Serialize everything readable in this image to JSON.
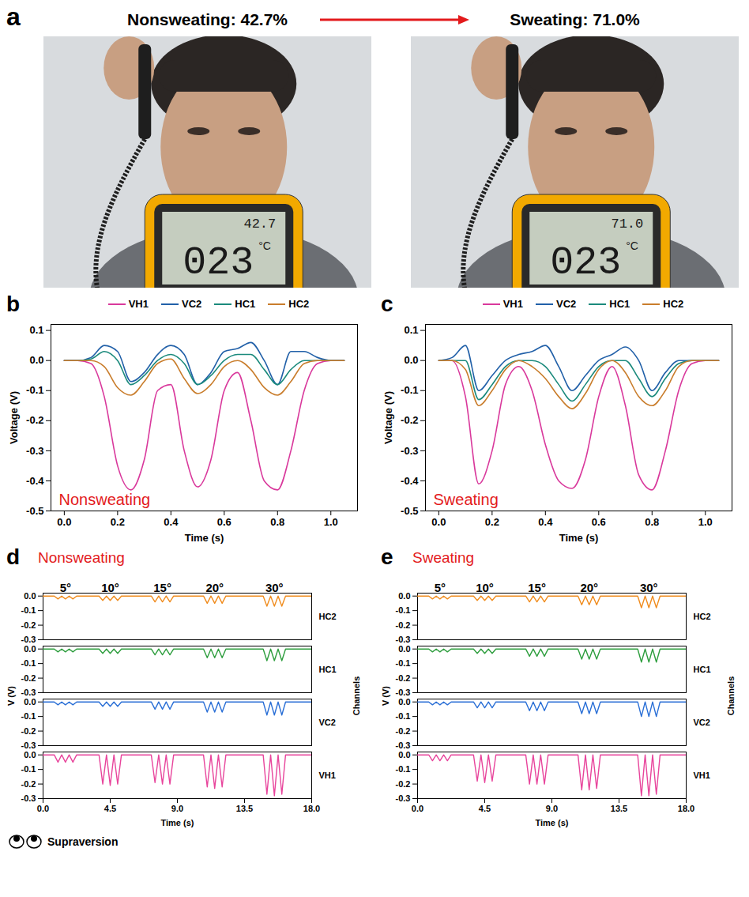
{
  "figure": {
    "panel_a": {
      "panel": "a",
      "left": {
        "title": "Nonsweating: 42.7%",
        "display": {
          "reading": "42.7",
          "temperature": "023",
          "unit": "°C"
        }
      },
      "right": {
        "title": "Sweating: 71.0%",
        "display": {
          "reading": "71.0",
          "temperature": "023",
          "unit": "°C"
        }
      }
    }
  },
  "chart_data": [
    {
      "panel": "b",
      "type": "line",
      "condition": "Nonsweating",
      "xlabel": "Time (s)",
      "ylabel": "Voltage (V)",
      "legend": "top",
      "grid": false,
      "x": [
        0,
        0.05,
        0.1,
        0.15,
        0.2,
        0.25,
        0.3,
        0.35,
        0.4,
        0.45,
        0.5,
        0.55,
        0.6,
        0.65,
        0.7,
        0.75,
        0.8,
        0.85,
        0.9,
        0.95,
        1.0,
        1.05
      ],
      "xlim": [
        -0.05,
        1.1
      ],
      "xticks": [
        {
          "value": 0,
          "label": "0.0"
        },
        0.2,
        0.4,
        0.6,
        0.8,
        {
          "value": 1,
          "label": "1.0"
        }
      ],
      "ylim": [
        -0.5,
        0.12
      ],
      "yticks": [
        0.1,
        {
          "value": 0,
          "label": "0.0"
        },
        -0.1,
        -0.2,
        -0.3,
        -0.4,
        -0.5
      ],
      "series": [
        {
          "name": "VH1",
          "color": "#d9399c",
          "values": [
            0,
            0,
            -0.01,
            -0.12,
            -0.35,
            -0.43,
            -0.33,
            -0.1,
            -0.08,
            -0.3,
            -0.42,
            -0.33,
            -0.1,
            -0.04,
            -0.2,
            -0.4,
            -0.43,
            -0.3,
            -0.1,
            -0.01,
            0,
            0
          ]
        },
        {
          "name": "VC2",
          "color": "#2160a8",
          "values": [
            0,
            0,
            0.01,
            0.05,
            0.03,
            -0.07,
            -0.04,
            0.02,
            0.05,
            0.02,
            -0.08,
            -0.04,
            0.03,
            0.04,
            0.06,
            0,
            -0.08,
            0.03,
            0.03,
            0.01,
            0,
            0
          ]
        },
        {
          "name": "HC1",
          "color": "#1b8a7c",
          "values": [
            0,
            0,
            0.005,
            0.03,
            0,
            -0.08,
            -0.05,
            0,
            0.02,
            -0.01,
            -0.08,
            -0.05,
            0,
            0.02,
            0.02,
            -0.03,
            -0.08,
            -0.03,
            0,
            0,
            0,
            0
          ]
        },
        {
          "name": "HC2",
          "color": "#c97d2c",
          "values": [
            0,
            0,
            0,
            -0.02,
            -0.09,
            -0.115,
            -0.07,
            -0.01,
            0.005,
            -0.06,
            -0.11,
            -0.08,
            -0.02,
            0,
            -0.03,
            -0.09,
            -0.115,
            -0.07,
            -0.01,
            0,
            0,
            0
          ]
        }
      ]
    },
    {
      "panel": "c",
      "type": "line",
      "condition": "Sweating",
      "xlabel": "Time (s)",
      "ylabel": "Voltage (V)",
      "legend": "top",
      "grid": false,
      "x": [
        0,
        0.05,
        0.1,
        0.15,
        0.2,
        0.25,
        0.3,
        0.35,
        0.4,
        0.45,
        0.5,
        0.55,
        0.6,
        0.65,
        0.7,
        0.75,
        0.8,
        0.85,
        0.9,
        0.95,
        1.0,
        1.05
      ],
      "xlim": [
        -0.05,
        1.1
      ],
      "xticks": [
        {
          "value": 0,
          "label": "0.0"
        },
        0.2,
        0.4,
        0.6,
        0.8,
        {
          "value": 1,
          "label": "1.0"
        }
      ],
      "ylim": [
        -0.5,
        0.12
      ],
      "yticks": [
        0.1,
        {
          "value": 0,
          "label": "0.0"
        },
        -0.1,
        -0.2,
        -0.3,
        -0.4,
        -0.5
      ],
      "series": [
        {
          "name": "VH1",
          "color": "#d9399c",
          "values": [
            0,
            0,
            -0.12,
            -0.41,
            -0.3,
            -0.08,
            -0.02,
            -0.1,
            -0.28,
            -0.4,
            -0.425,
            -0.33,
            -0.12,
            -0.02,
            -0.15,
            -0.38,
            -0.43,
            -0.3,
            -0.1,
            -0.01,
            0,
            0
          ]
        },
        {
          "name": "VC2",
          "color": "#2160a8",
          "values": [
            0,
            0.01,
            0.05,
            -0.1,
            -0.05,
            0,
            0.02,
            0.03,
            0.05,
            -0.02,
            -0.1,
            -0.05,
            0,
            0.02,
            0.045,
            0,
            -0.1,
            -0.04,
            0,
            0,
            0,
            0
          ]
        },
        {
          "name": "HC1",
          "color": "#1b8a7c",
          "values": [
            0,
            0,
            0,
            -0.13,
            -0.08,
            -0.02,
            0,
            0,
            -0.02,
            -0.08,
            -0.135,
            -0.08,
            -0.02,
            0,
            0,
            -0.06,
            -0.12,
            -0.06,
            -0.01,
            0,
            0,
            0
          ]
        },
        {
          "name": "HC2",
          "color": "#c97d2c",
          "values": [
            0,
            0,
            -0.03,
            -0.15,
            -0.1,
            -0.03,
            0,
            -0.02,
            -0.06,
            -0.12,
            -0.16,
            -0.11,
            -0.03,
            0,
            -0.04,
            -0.12,
            -0.15,
            -0.1,
            -0.02,
            0,
            0,
            0
          ]
        }
      ]
    },
    {
      "panel": "d",
      "type": "line",
      "condition": "Nonsweating",
      "caption": "Supraversion",
      "xlabel": "Time (s)",
      "ylabel": "V (V)",
      "channel_label": "Channels",
      "grid": false,
      "annotations": [
        {
          "text": "5°",
          "x": 1.5
        },
        {
          "text": "10°",
          "x": 4.5
        },
        {
          "text": "15°",
          "x": 8
        },
        {
          "text": "20°",
          "x": 11.5
        },
        {
          "text": "30°",
          "x": 15.5
        }
      ],
      "x": [
        0,
        0.75,
        1,
        1.25,
        1.5,
        1.75,
        2,
        2.25,
        3.75,
        4,
        4.25,
        4.5,
        4.75,
        5,
        5.25,
        7.25,
        7.5,
        7.75,
        8,
        8.25,
        8.5,
        8.75,
        10.75,
        11,
        11.25,
        11.5,
        11.75,
        12,
        12.25,
        14.75,
        15,
        15.25,
        15.5,
        15.75,
        16,
        16.25,
        18
      ],
      "xlim": [
        0,
        18
      ],
      "xticks": [
        {
          "value": 0,
          "label": "0.0"
        },
        4.5,
        {
          "value": 9,
          "label": "9.0"
        },
        13.5,
        {
          "value": 18,
          "label": "18.0"
        }
      ],
      "ylim": [
        -0.3,
        0.02
      ],
      "yticks": [
        {
          "value": 0,
          "label": "0.0"
        },
        -0.1,
        -0.2,
        -0.3
      ],
      "series": [
        {
          "name": "VH1",
          "color": "#e8459c",
          "values": [
            0,
            0,
            -0.05,
            0,
            -0.05,
            0,
            -0.05,
            0,
            0,
            -0.2,
            0,
            -0.21,
            0,
            -0.2,
            0,
            0,
            -0.19,
            0,
            -0.2,
            0,
            -0.2,
            0,
            0,
            -0.22,
            0,
            -0.23,
            0,
            -0.22,
            0,
            0,
            -0.27,
            0,
            -0.28,
            0,
            -0.27,
            0,
            0
          ]
        },
        {
          "name": "VC2",
          "color": "#2a6fd6",
          "values": [
            0,
            0,
            -0.02,
            0,
            -0.02,
            0,
            -0.02,
            0,
            0,
            -0.03,
            0,
            -0.03,
            0,
            -0.03,
            0,
            0,
            -0.05,
            0,
            -0.05,
            0,
            -0.05,
            0,
            0,
            -0.07,
            0,
            -0.07,
            0,
            -0.07,
            0,
            0,
            -0.09,
            0,
            -0.09,
            0,
            -0.09,
            0,
            0
          ]
        },
        {
          "name": "HC1",
          "color": "#2e9e3e",
          "values": [
            0,
            0,
            -0.02,
            0,
            -0.02,
            0,
            -0.02,
            0,
            0,
            -0.03,
            0,
            -0.03,
            0,
            -0.03,
            0,
            0,
            -0.04,
            0,
            -0.04,
            0,
            -0.04,
            0,
            0,
            -0.06,
            0,
            -0.06,
            0,
            -0.06,
            0,
            0,
            -0.08,
            0,
            -0.08,
            0,
            -0.08,
            0,
            0
          ]
        },
        {
          "name": "HC2",
          "color": "#f08c1e",
          "values": [
            0,
            0,
            -0.02,
            0,
            -0.02,
            0,
            -0.02,
            0,
            0,
            -0.03,
            0,
            -0.03,
            0,
            -0.03,
            0,
            0,
            -0.04,
            0,
            -0.04,
            0,
            -0.04,
            0,
            0,
            -0.05,
            0,
            -0.05,
            0,
            -0.05,
            0,
            0,
            -0.07,
            0,
            -0.07,
            0,
            -0.07,
            0,
            0
          ]
        }
      ]
    },
    {
      "panel": "e",
      "type": "line",
      "condition": "Sweating",
      "xlabel": "Time (s)",
      "ylabel": "V (V)",
      "channel_label": "Channels",
      "grid": false,
      "annotations": [
        {
          "text": "5°",
          "x": 1.5
        },
        {
          "text": "10°",
          "x": 4.5
        },
        {
          "text": "15°",
          "x": 8
        },
        {
          "text": "20°",
          "x": 11.5
        },
        {
          "text": "30°",
          "x": 15.5
        }
      ],
      "x": [
        0,
        0.75,
        1,
        1.25,
        1.5,
        1.75,
        2,
        2.25,
        3.75,
        4,
        4.25,
        4.5,
        4.75,
        5,
        5.25,
        7.25,
        7.5,
        7.75,
        8,
        8.25,
        8.5,
        8.75,
        10.75,
        11,
        11.25,
        11.5,
        11.75,
        12,
        12.25,
        14.75,
        15,
        15.25,
        15.5,
        15.75,
        16,
        16.25,
        18
      ],
      "xlim": [
        0,
        18
      ],
      "xticks": [
        {
          "value": 0,
          "label": "0.0"
        },
        4.5,
        {
          "value": 9,
          "label": "9.0"
        },
        13.5,
        {
          "value": 18,
          "label": "18.0"
        }
      ],
      "ylim": [
        -0.3,
        0.02
      ],
      "yticks": [
        {
          "value": 0,
          "label": "0.0"
        },
        -0.1,
        -0.2,
        -0.3
      ],
      "series": [
        {
          "name": "VH1",
          "color": "#e8459c",
          "values": [
            0,
            0,
            -0.04,
            0,
            -0.04,
            0,
            -0.04,
            0,
            0,
            -0.18,
            0,
            -0.19,
            0,
            -0.18,
            0,
            0,
            -0.2,
            0,
            -0.2,
            0,
            -0.2,
            0,
            0,
            -0.24,
            0,
            -0.24,
            0,
            -0.23,
            0,
            0,
            -0.28,
            0,
            -0.28,
            0,
            -0.27,
            0,
            0
          ]
        },
        {
          "name": "VC2",
          "color": "#2a6fd6",
          "values": [
            0,
            0,
            -0.02,
            0,
            -0.02,
            0,
            -0.02,
            0,
            0,
            -0.04,
            0,
            -0.04,
            0,
            -0.04,
            0,
            0,
            -0.06,
            0,
            -0.06,
            0,
            -0.06,
            0,
            0,
            -0.08,
            0,
            -0.08,
            0,
            -0.08,
            0,
            0,
            -0.1,
            0,
            -0.1,
            0,
            -0.1,
            0,
            0
          ]
        },
        {
          "name": "HC1",
          "color": "#2e9e3e",
          "values": [
            0,
            0,
            -0.02,
            0,
            -0.02,
            0,
            -0.02,
            0,
            0,
            -0.03,
            0,
            -0.03,
            0,
            -0.03,
            0,
            0,
            -0.05,
            0,
            -0.05,
            0,
            -0.05,
            0,
            0,
            -0.07,
            0,
            -0.07,
            0,
            -0.07,
            0,
            0,
            -0.09,
            0,
            -0.09,
            0,
            -0.09,
            0,
            0
          ]
        },
        {
          "name": "HC2",
          "color": "#f08c1e",
          "values": [
            0,
            0,
            -0.02,
            0,
            -0.02,
            0,
            -0.02,
            0,
            0,
            -0.03,
            0,
            -0.03,
            0,
            -0.03,
            0,
            0,
            -0.04,
            0,
            -0.04,
            0,
            -0.04,
            0,
            0,
            -0.06,
            0,
            -0.06,
            0,
            -0.06,
            0,
            0,
            -0.08,
            0,
            -0.08,
            0,
            -0.08,
            0,
            0
          ]
        }
      ]
    }
  ]
}
